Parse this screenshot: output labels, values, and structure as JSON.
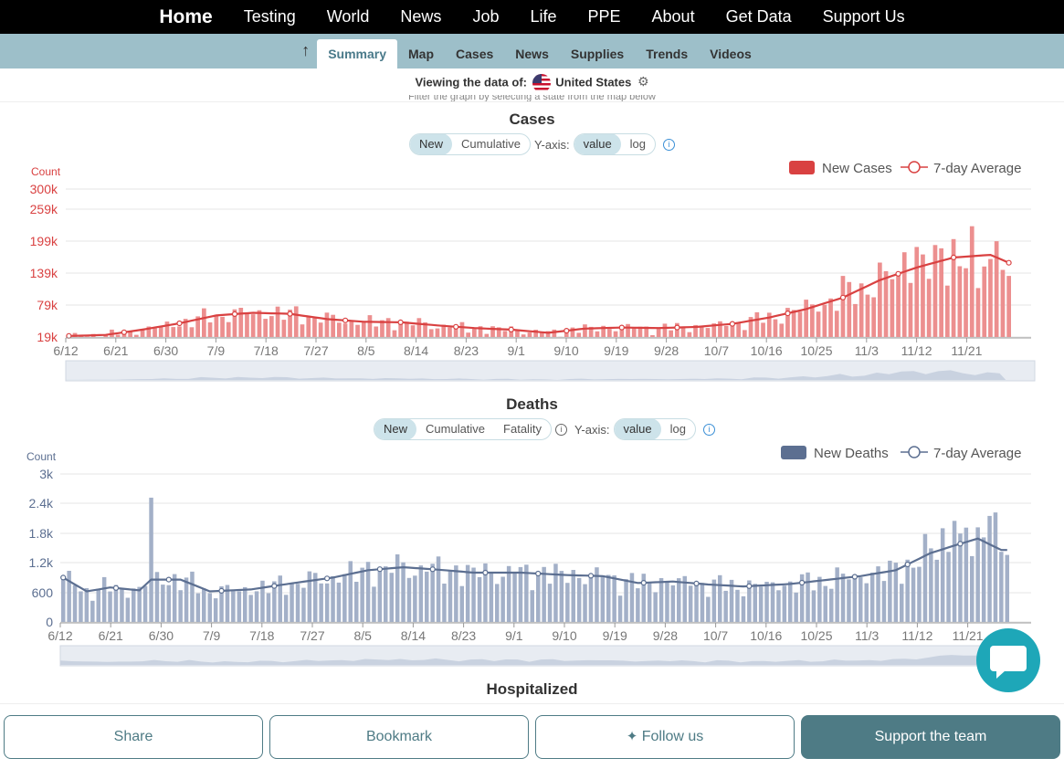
{
  "topnav": [
    "Home",
    "Testing",
    "World",
    "News",
    "Job",
    "Life",
    "PPE",
    "About",
    "Get Data",
    "Support Us"
  ],
  "subnav": {
    "tabs": [
      "Summary",
      "Map",
      "Cases",
      "News",
      "Supplies",
      "Trends",
      "Videos"
    ],
    "active": "Summary"
  },
  "viewing": {
    "label": "Viewing the data of:",
    "country": "United States"
  },
  "filter_hint": "Filter the graph by selecting a state from the map below",
  "hospitalized_title": "Hospitalized",
  "colors": {
    "cases": "#d94141",
    "cases_bar": "#ec8f8f",
    "deaths": "#5c6f91",
    "deaths_bar": "#a3b0c8"
  },
  "cases_controls": {
    "new": "New",
    "cumulative": "Cumulative",
    "yaxis": "Y-axis:",
    "value": "value",
    "log": "log"
  },
  "deaths_controls": {
    "new": "New",
    "cumulative": "Cumulative",
    "fatality": "Fatality",
    "yaxis": "Y-axis:",
    "value": "value",
    "log": "log"
  },
  "chart_data": [
    {
      "type": "bar",
      "title": "Cases",
      "ylabel": "Count",
      "yticks": [
        "19k",
        "79k",
        "139k",
        "199k",
        "259k",
        "300k"
      ],
      "ylim": [
        19,
        300
      ],
      "xticks": [
        "6/12",
        "6/21",
        "6/30",
        "7/9",
        "7/18",
        "7/27",
        "8/5",
        "8/14",
        "8/23",
        "9/1",
        "9/10",
        "9/19",
        "9/28",
        "10/7",
        "10/16",
        "10/25",
        "11/3",
        "11/12",
        "11/21"
      ],
      "legend": [
        "New Cases",
        "7-day Average"
      ],
      "avg_keypoints": [
        [
          0,
          21
        ],
        [
          6,
          23
        ],
        [
          12,
          33
        ],
        [
          18,
          45
        ],
        [
          24,
          60
        ],
        [
          30,
          65
        ],
        [
          36,
          63
        ],
        [
          42,
          53
        ],
        [
          48,
          48
        ],
        [
          54,
          47
        ],
        [
          60,
          41
        ],
        [
          66,
          36
        ],
        [
          72,
          33
        ],
        [
          78,
          27
        ],
        [
          84,
          35
        ],
        [
          90,
          37
        ],
        [
          96,
          36
        ],
        [
          102,
          38
        ],
        [
          108,
          44
        ],
        [
          114,
          56
        ],
        [
          120,
          72
        ],
        [
          126,
          94
        ],
        [
          132,
          127
        ],
        [
          138,
          151
        ],
        [
          144,
          170
        ],
        [
          150,
          175
        ],
        [
          153,
          160
        ]
      ],
      "spikes": {
        "120": 90,
        "126": 135,
        "136": 180,
        "138": 190,
        "144": 205,
        "148": 112,
        "151": 201,
        "153": 135
      },
      "n": 154
    },
    {
      "type": "bar",
      "title": "Deaths",
      "ylabel": "Count",
      "yticks": [
        "0",
        "600",
        "1.2k",
        "1.8k",
        "2.4k",
        "3k"
      ],
      "ylim": [
        0,
        3000
      ],
      "xticks": [
        "6/12",
        "6/21",
        "6/30",
        "7/9",
        "7/18",
        "7/27",
        "8/5",
        "8/14",
        "8/23",
        "9/1",
        "9/10",
        "9/19",
        "9/28",
        "10/7",
        "10/16",
        "10/25",
        "11/3",
        "11/12",
        "11/21"
      ],
      "legend": [
        "New Deaths",
        "7-day Average"
      ],
      "avg_keypoints": [
        [
          0,
          900
        ],
        [
          4,
          620
        ],
        [
          8,
          700
        ],
        [
          13,
          640
        ],
        [
          15,
          860
        ],
        [
          20,
          860
        ],
        [
          25,
          620
        ],
        [
          32,
          660
        ],
        [
          40,
          800
        ],
        [
          46,
          900
        ],
        [
          52,
          1050
        ],
        [
          58,
          1110
        ],
        [
          64,
          1060
        ],
        [
          70,
          1000
        ],
        [
          78,
          1000
        ],
        [
          86,
          950
        ],
        [
          92,
          930
        ],
        [
          98,
          790
        ],
        [
          104,
          820
        ],
        [
          110,
          760
        ],
        [
          116,
          720
        ],
        [
          124,
          770
        ],
        [
          130,
          850
        ],
        [
          136,
          930
        ],
        [
          142,
          1050
        ],
        [
          148,
          1400
        ],
        [
          152,
          1550
        ],
        [
          156,
          1690
        ],
        [
          160,
          1460
        ]
      ],
      "spikes": {
        "15": 2520,
        "150": 1900,
        "152": 2050,
        "158": 2150,
        "159": 2220
      },
      "n": 162
    }
  ],
  "bottom": {
    "share": "Share",
    "bookmark": "Bookmark",
    "follow": "Follow us",
    "support": "Support the team"
  }
}
